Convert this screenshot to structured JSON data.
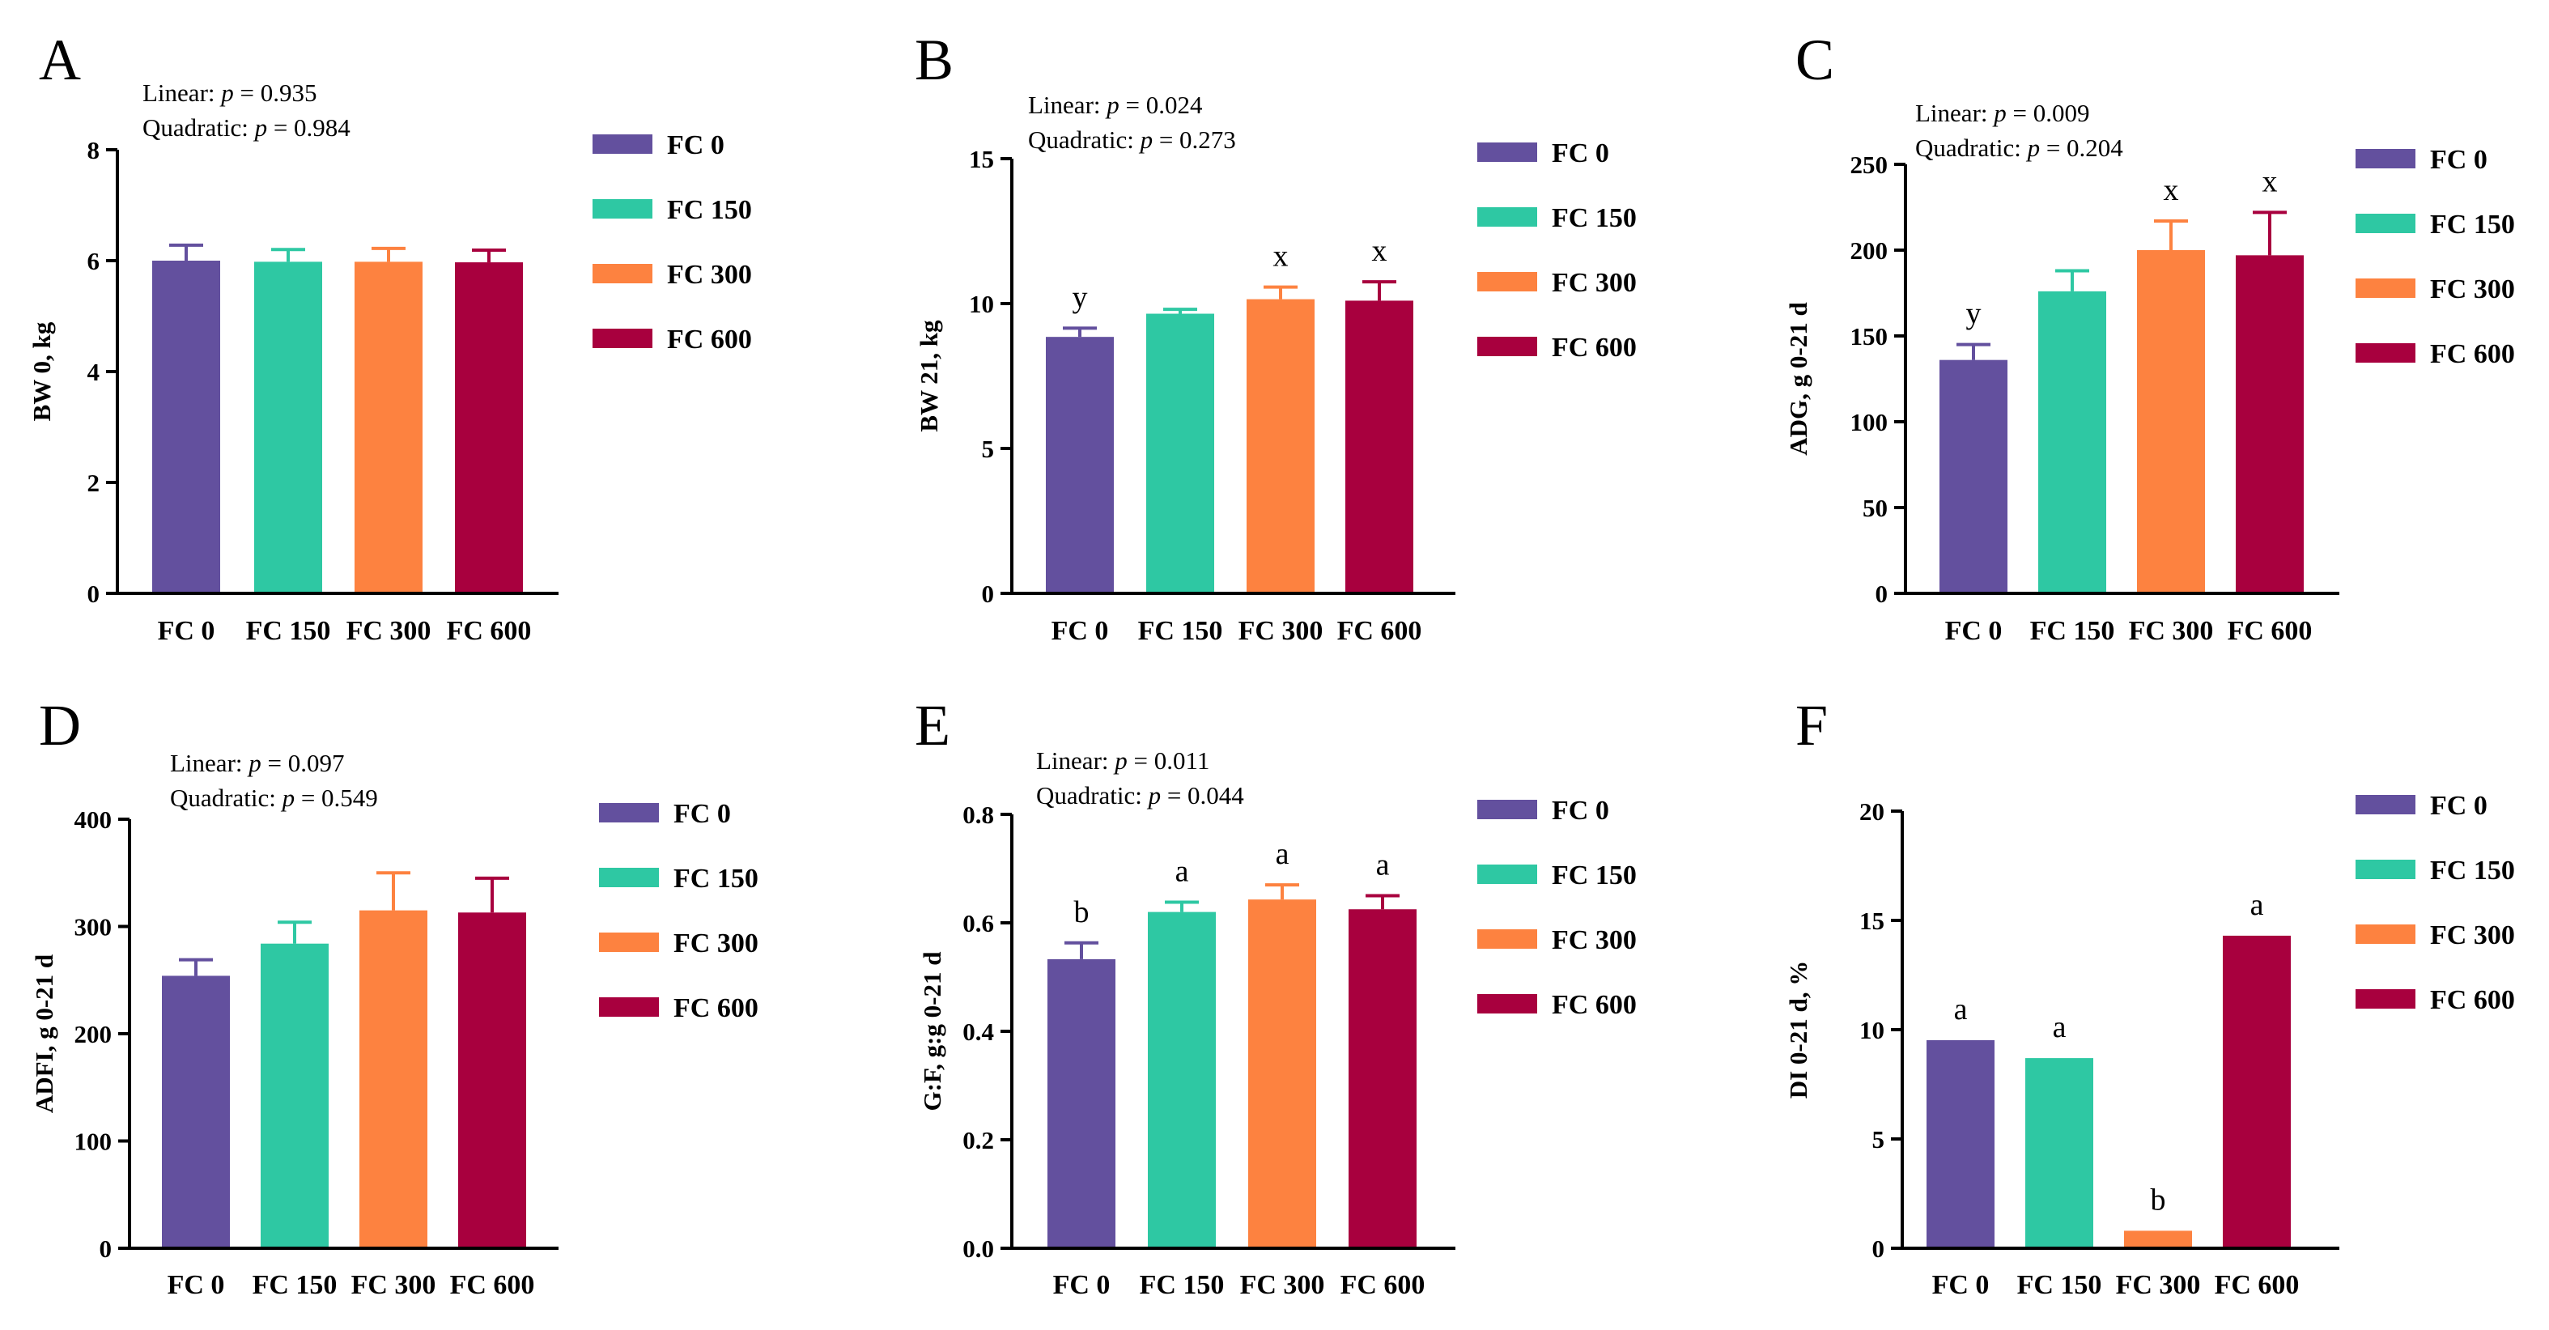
{
  "chart_data": [
    {
      "type": "bar",
      "panel": "A",
      "stats": {
        "linear_label": "Linear: ",
        "linear_p": "p",
        "linear_value": " = 0.935",
        "quadratic_label": "Quadratic: ",
        "quadratic_p": "p",
        "quadratic_value": " = 0.984"
      },
      "ylabel": "BW 0, kg",
      "ylim": [
        0,
        8
      ],
      "yticks": [
        0,
        2,
        4,
        6,
        8
      ],
      "categories": [
        "FC 0",
        "FC 150",
        "FC 300",
        "FC 600"
      ],
      "values": [
        6.0,
        5.98,
        5.98,
        5.97
      ],
      "errors": [
        0.28,
        0.22,
        0.24,
        0.22
      ],
      "letters": [
        "",
        "",
        "",
        ""
      ]
    },
    {
      "type": "bar",
      "panel": "B",
      "stats": {
        "linear_label": "Linear: ",
        "linear_p": "p",
        "linear_value": " = 0.024",
        "quadratic_label": "Quadratic: ",
        "quadratic_p": "p",
        "quadratic_value": " = 0.273"
      },
      "ylabel": "BW 21, kg",
      "ylim": [
        0,
        15
      ],
      "yticks": [
        0,
        5,
        10,
        15
      ],
      "categories": [
        "FC 0",
        "FC 150",
        "FC 300",
        "FC 600"
      ],
      "values": [
        8.85,
        9.65,
        10.15,
        10.1
      ],
      "errors": [
        0.3,
        0.15,
        0.42,
        0.65
      ],
      "letters": [
        "y",
        "",
        "x",
        "x"
      ]
    },
    {
      "type": "bar",
      "panel": "C",
      "stats": {
        "linear_label": "Linear: ",
        "linear_p": "p",
        "linear_value": " = 0.009",
        "quadratic_label": "Quadratic: ",
        "quadratic_p": "p",
        "quadratic_value": " = 0.204"
      },
      "ylabel": "ADG, g 0-21 d",
      "ylim": [
        0,
        250
      ],
      "yticks": [
        0,
        50,
        100,
        150,
        200,
        250
      ],
      "categories": [
        "FC 0",
        "FC 150",
        "FC 300",
        "FC 600"
      ],
      "values": [
        136,
        176,
        200,
        197
      ],
      "errors": [
        9,
        12,
        17,
        25
      ],
      "letters": [
        "y",
        "",
        "x",
        "x"
      ]
    },
    {
      "type": "bar",
      "panel": "D",
      "stats": {
        "linear_label": "Linear: ",
        "linear_p": "p",
        "linear_value": " = 0.097",
        "quadratic_label": "Quadratic: ",
        "quadratic_p": "p",
        "quadratic_value": " = 0.549"
      },
      "ylabel": "ADFI, g 0-21 d",
      "ylim": [
        0,
        400
      ],
      "yticks": [
        0,
        100,
        200,
        300,
        400
      ],
      "categories": [
        "FC 0",
        "FC 150",
        "FC 300",
        "FC 600"
      ],
      "values": [
        254,
        284,
        315,
        313
      ],
      "errors": [
        15,
        20,
        35,
        32
      ],
      "letters": [
        "",
        "",
        "",
        ""
      ]
    },
    {
      "type": "bar",
      "panel": "E",
      "stats": {
        "linear_label": "Linear: ",
        "linear_p": "p",
        "linear_value": " = 0.011",
        "quadratic_label": "Quadratic: ",
        "quadratic_p": "p",
        "quadratic_value": " = 0.044"
      },
      "ylabel": "G:F, g:g  0-21 d",
      "ylim": [
        0,
        0.8
      ],
      "yticks": [
        "0.0",
        "0.2",
        "0.4",
        "0.6",
        "0.8"
      ],
      "categories": [
        "FC 0",
        "FC 150",
        "FC 300",
        "FC 600"
      ],
      "values": [
        0.533,
        0.62,
        0.643,
        0.625
      ],
      "errors": [
        0.03,
        0.018,
        0.027,
        0.025
      ],
      "letters": [
        "b",
        "a",
        "a",
        "a"
      ]
    },
    {
      "type": "bar",
      "panel": "F",
      "stats": null,
      "ylabel": "DI 0-21 d, %",
      "ylim": [
        0,
        20
      ],
      "yticks": [
        0,
        5,
        10,
        15,
        20
      ],
      "categories": [
        "FC 0",
        "FC 150",
        "FC 300",
        "FC 600"
      ],
      "values": [
        9.52,
        8.7,
        0.8,
        14.3
      ],
      "errors": [
        0,
        0,
        0,
        0
      ],
      "letters": [
        "a",
        "a",
        "b",
        "a"
      ]
    }
  ],
  "legend": {
    "entries": [
      "FC 0",
      "FC 150",
      "FC 300",
      "FC 600"
    ]
  },
  "colors": [
    "#63509e",
    "#2ec8a3",
    "#fd8240",
    "#a8003e"
  ]
}
